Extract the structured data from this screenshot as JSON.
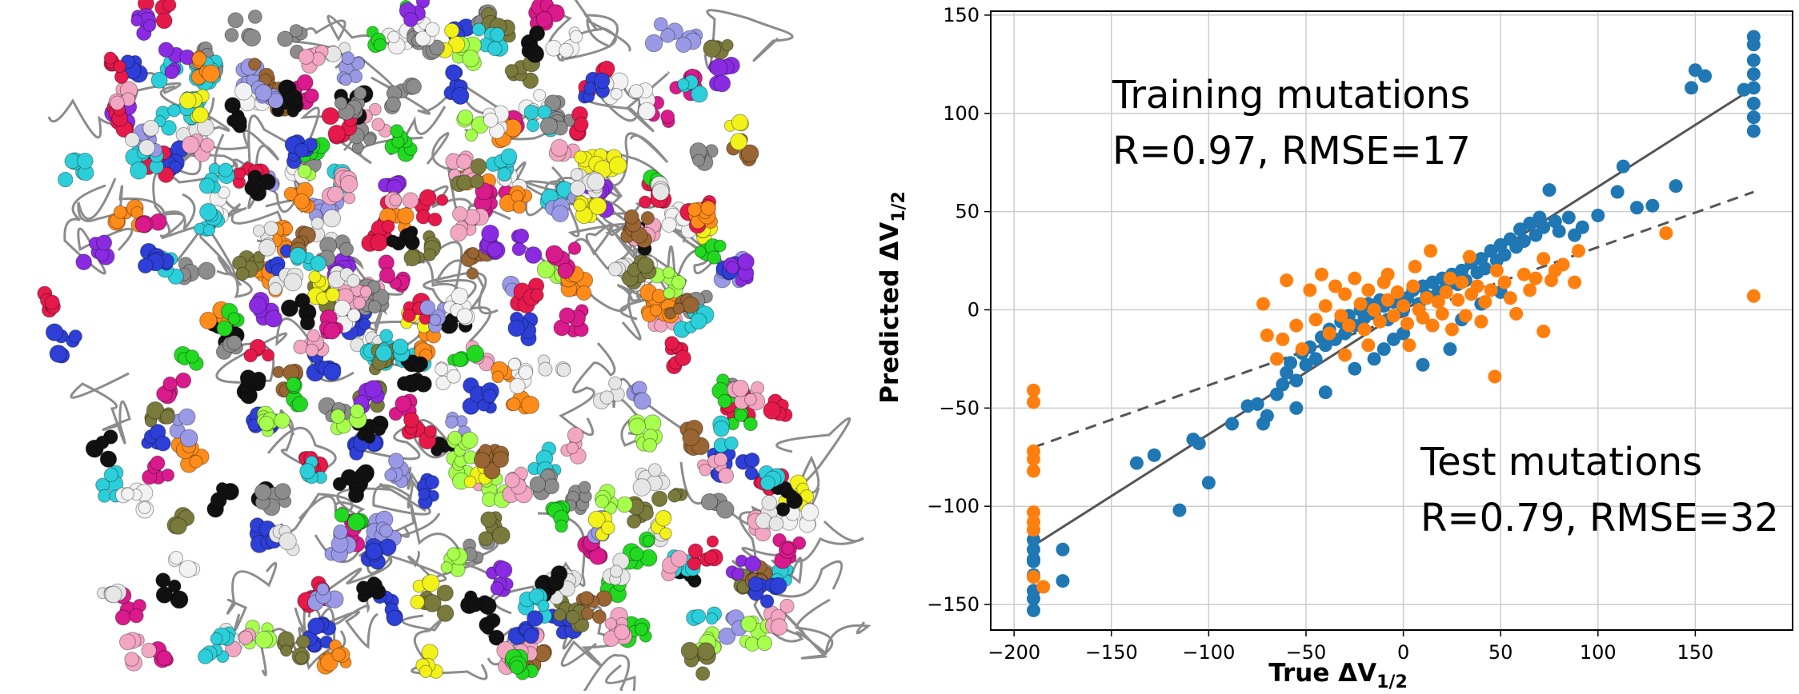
{
  "colors": {
    "training": "#1f77b4",
    "test": "#ff7f0e",
    "fit_line": "#555555",
    "grid": "#cccccc",
    "protein_backbone": "#8c8c8c",
    "residue_palette": [
      "#e6194b",
      "#d91a8b",
      "#8a2be2",
      "#2d3fd6",
      "#2ccfd9",
      "#21d921",
      "#f2f21a",
      "#ff8c1a",
      "#8c8c8c",
      "#f2a6c2",
      "#9999e6",
      "#111111",
      "#f2f2f2",
      "#7a7a3d",
      "#a6ff4d",
      "#996633",
      "#e6e6e6"
    ]
  },
  "protein": {
    "description_icon": "protein-structure-image"
  },
  "chart_data": {
    "type": "scatter",
    "xlabel_main": "True ΔV",
    "xlabel_sub": "1/2",
    "ylabel_main": "Predicted ΔV",
    "ylabel_sub": "1/2",
    "xlim": [
      -212,
      200
    ],
    "ylim": [
      -163,
      152
    ],
    "x_ticks": [
      -200,
      -150,
      -100,
      -50,
      0,
      50,
      100,
      150
    ],
    "y_ticks": [
      -150,
      -100,
      -50,
      0,
      50,
      100,
      150
    ],
    "x_tick_labels": [
      "−200",
      "−150",
      "−100",
      "−50",
      "0",
      "50",
      "100",
      "150"
    ],
    "y_tick_labels": [
      "−150",
      "−100",
      "−50",
      "0",
      "50",
      "100",
      "150"
    ],
    "grid": true,
    "annotations": [
      {
        "line1": "Training mutations",
        "line2": "R=0.97, RMSE=17"
      },
      {
        "line1": "Test mutations",
        "line2": "R=0.79, RMSE=32"
      }
    ],
    "fit_lines": [
      {
        "series": "training",
        "style": "solid",
        "x": [
          -190,
          180
        ],
        "y": [
          -120,
          113
        ]
      },
      {
        "series": "test",
        "style": "dashed",
        "x": [
          -190,
          180
        ],
        "y": [
          -70,
          60
        ]
      }
    ],
    "series": [
      {
        "key": "training",
        "points": [
          [
            -190,
            -153
          ],
          [
            -190,
            -147
          ],
          [
            -190,
            -143
          ],
          [
            -190,
            -135
          ],
          [
            -190,
            -128
          ],
          [
            -190,
            -122
          ],
          [
            -190,
            -117
          ],
          [
            -190,
            -112
          ],
          [
            -190,
            -127
          ],
          [
            -175,
            -122
          ],
          [
            -175,
            -138
          ],
          [
            -137,
            -78
          ],
          [
            -128,
            -74
          ],
          [
            -115,
            -102
          ],
          [
            -108,
            -66
          ],
          [
            -105,
            -68
          ],
          [
            -100,
            -88
          ],
          [
            -88,
            -58
          ],
          [
            -80,
            -49
          ],
          [
            -75,
            -48
          ],
          [
            -72,
            -58
          ],
          [
            -70,
            -54
          ],
          [
            -65,
            -43
          ],
          [
            -62,
            -38
          ],
          [
            -60,
            -32
          ],
          [
            -58,
            -27
          ],
          [
            -55,
            -36
          ],
          [
            -52,
            -22
          ],
          [
            -50,
            -28
          ],
          [
            -48,
            -19
          ],
          [
            -45,
            -25
          ],
          [
            -42,
            -14
          ],
          [
            -40,
            -18
          ],
          [
            -38,
            -10
          ],
          [
            -35,
            -15
          ],
          [
            -32,
            -6
          ],
          [
            -30,
            -12
          ],
          [
            -28,
            -3
          ],
          [
            -25,
            -8
          ],
          [
            -22,
            0
          ],
          [
            -20,
            -4
          ],
          [
            -18,
            3
          ],
          [
            -15,
            -2
          ],
          [
            -12,
            5
          ],
          [
            -10,
            2
          ],
          [
            -8,
            -5
          ],
          [
            -5,
            4
          ],
          [
            -3,
            8
          ],
          [
            0,
            0
          ],
          [
            2,
            6
          ],
          [
            5,
            10
          ],
          [
            8,
            3
          ],
          [
            10,
            12
          ],
          [
            12,
            7
          ],
          [
            15,
            14
          ],
          [
            18,
            9
          ],
          [
            20,
            16
          ],
          [
            22,
            11
          ],
          [
            25,
            18
          ],
          [
            28,
            13
          ],
          [
            30,
            20
          ],
          [
            32,
            15
          ],
          [
            35,
            24
          ],
          [
            38,
            19
          ],
          [
            40,
            26
          ],
          [
            42,
            21
          ],
          [
            45,
            30
          ],
          [
            48,
            25
          ],
          [
            50,
            33
          ],
          [
            52,
            28
          ],
          [
            55,
            36
          ],
          [
            58,
            32
          ],
          [
            60,
            41
          ],
          [
            62,
            35
          ],
          [
            65,
            44
          ],
          [
            68,
            38
          ],
          [
            70,
            47
          ],
          [
            72,
            42
          ],
          [
            75,
            61
          ],
          [
            78,
            45
          ],
          [
            80,
            40
          ],
          [
            85,
            47
          ],
          [
            88,
            38
          ],
          [
            92,
            42
          ],
          [
            100,
            48
          ],
          [
            110,
            60
          ],
          [
            113,
            73
          ],
          [
            120,
            52
          ],
          [
            128,
            53
          ],
          [
            140,
            63
          ],
          [
            148,
            113
          ],
          [
            150,
            122
          ],
          [
            155,
            119
          ],
          [
            175,
            112
          ],
          [
            180,
            91
          ],
          [
            180,
            98
          ],
          [
            180,
            105
          ],
          [
            180,
            113
          ],
          [
            180,
            120
          ],
          [
            180,
            127
          ],
          [
            180,
            135
          ],
          [
            180,
            139
          ],
          [
            10,
            -28
          ],
          [
            -10,
            -20
          ],
          [
            -25,
            -30
          ],
          [
            -40,
            -42
          ],
          [
            -55,
            -50
          ],
          [
            0,
            -12
          ],
          [
            15,
            -8
          ],
          [
            24,
            -20
          ],
          [
            40,
            3
          ],
          [
            50,
            9
          ],
          [
            -5,
            -15
          ],
          [
            -15,
            -25
          ],
          [
            30,
            -5
          ]
        ]
      },
      {
        "key": "test",
        "points": [
          [
            -190,
            -41
          ],
          [
            -190,
            -47
          ],
          [
            -190,
            -72
          ],
          [
            -190,
            -76
          ],
          [
            -190,
            -82
          ],
          [
            -190,
            -103
          ],
          [
            -190,
            -108
          ],
          [
            -190,
            -112
          ],
          [
            -190,
            -136
          ],
          [
            -185,
            -141
          ],
          [
            -72,
            3
          ],
          [
            -70,
            -13
          ],
          [
            -65,
            -25
          ],
          [
            -62,
            -15
          ],
          [
            -60,
            15
          ],
          [
            -55,
            -8
          ],
          [
            -52,
            -20
          ],
          [
            -48,
            10
          ],
          [
            -45,
            -5
          ],
          [
            -42,
            18
          ],
          [
            -40,
            2
          ],
          [
            -38,
            -12
          ],
          [
            -35,
            12
          ],
          [
            -32,
            -3
          ],
          [
            -30,
            8
          ],
          [
            -28,
            -8
          ],
          [
            -25,
            16
          ],
          [
            -22,
            3
          ],
          [
            -20,
            -10
          ],
          [
            -18,
            10
          ],
          [
            -15,
            0
          ],
          [
            -12,
            -6
          ],
          [
            -10,
            14
          ],
          [
            -8,
            5
          ],
          [
            -5,
            -3
          ],
          [
            -3,
            9
          ],
          [
            0,
            2
          ],
          [
            2,
            -7
          ],
          [
            5,
            12
          ],
          [
            8,
            0
          ],
          [
            10,
            -4
          ],
          [
            12,
            6
          ],
          [
            15,
            -8
          ],
          [
            18,
            4
          ],
          [
            20,
            -2
          ],
          [
            22,
            9
          ],
          [
            25,
            -10
          ],
          [
            28,
            5
          ],
          [
            30,
            14
          ],
          [
            32,
            -3
          ],
          [
            35,
            8
          ],
          [
            38,
            12
          ],
          [
            40,
            -6
          ],
          [
            42,
            4
          ],
          [
            45,
            10
          ],
          [
            47,
            -34
          ],
          [
            48,
            20
          ],
          [
            52,
            14
          ],
          [
            55,
            6
          ],
          [
            62,
            18
          ],
          [
            65,
            10
          ],
          [
            68,
            16
          ],
          [
            72,
            26
          ],
          [
            78,
            20
          ],
          [
            82,
            23
          ],
          [
            72,
            -11
          ],
          [
            76,
            15
          ],
          [
            90,
            30
          ],
          [
            135,
            39
          ],
          [
            180,
            7
          ],
          [
            -8,
            18
          ],
          [
            6,
            22
          ],
          [
            14,
            30
          ],
          [
            24,
            16
          ],
          [
            34,
            27
          ],
          [
            3,
            -18
          ],
          [
            -18,
            -18
          ],
          [
            -30,
            -23
          ],
          [
            58,
            -2
          ],
          [
            88,
            14
          ]
        ]
      }
    ]
  }
}
